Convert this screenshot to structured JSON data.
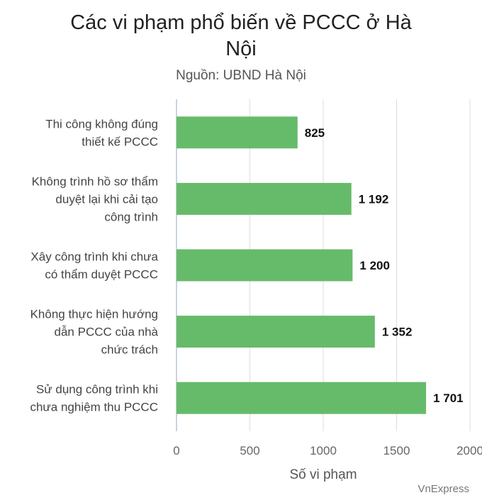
{
  "title_line1": "Các vi phạm phổ biến về PCCC ở Hà",
  "title_line2": "Nội",
  "subtitle": "Nguồn: UBND Hà Nội",
  "footer": "VnExpress",
  "colors": {
    "bar": "#66bb6a",
    "grid": "#dddddd",
    "axis": "#c8d3dc"
  },
  "chart_data": {
    "type": "bar",
    "orientation": "horizontal",
    "categories": [
      [
        "Thi công không đúng",
        "thiết kế PCCC"
      ],
      [
        "Không trình hồ sơ thẩm",
        "duyệt lại khi cải tạo",
        "công trình"
      ],
      [
        "Xây công trình khi chưa",
        "có thẩm duyệt PCCC"
      ],
      [
        "Không thực hiện hướng",
        "dẫn PCCC của nhà",
        "chức trách"
      ],
      [
        "Sử dụng công trình khi",
        "chưa nghiệm thu PCCC"
      ]
    ],
    "values": [
      825,
      1192,
      1200,
      1352,
      1701
    ],
    "data_labels": [
      "825",
      "1 192",
      "1 200",
      "1 352",
      "1 701"
    ],
    "xlim": [
      0,
      2000
    ],
    "xticks": [
      0,
      500,
      1000,
      1500,
      2000
    ],
    "xtick_labels": [
      "0",
      "500",
      "1000",
      "1500",
      "2000"
    ],
    "xlabel": "Số vi phạm",
    "grid": true
  }
}
